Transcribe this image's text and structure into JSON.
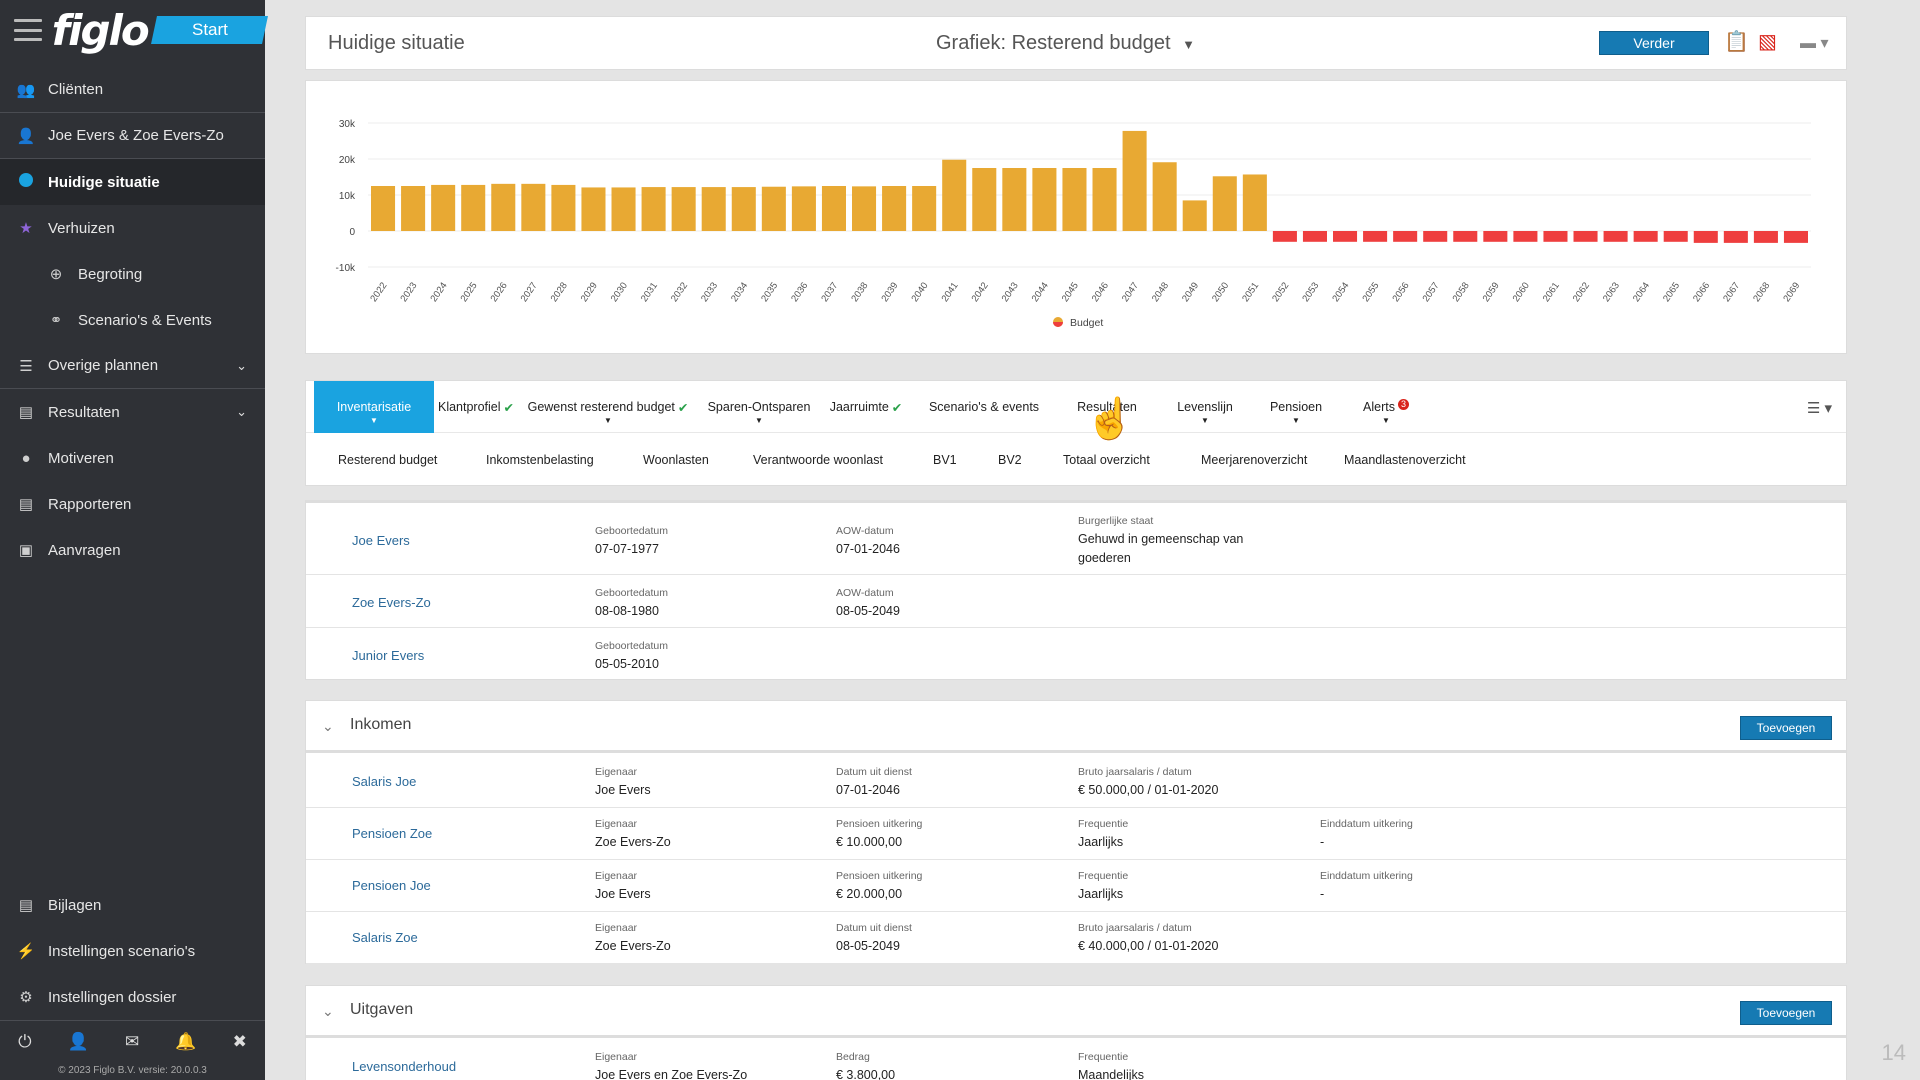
{
  "sidebar": {
    "logo": "figlo",
    "start_label": "Start",
    "items": [
      {
        "label": "Cliënten",
        "icon": "users-icon"
      },
      {
        "label": "Joe Evers & Zoe Evers-Zo",
        "icon": "user-icon"
      },
      {
        "label": "Huidige situatie",
        "icon": "dot-icon"
      },
      {
        "label": "Verhuizen",
        "icon": "star-icon"
      },
      {
        "label": "Begroting",
        "icon": "target-icon"
      },
      {
        "label": "Scenario's & Events",
        "icon": "glasses-icon"
      },
      {
        "label": "Overige plannen",
        "icon": "list-icon"
      },
      {
        "label": "Resultaten",
        "icon": "chart-icon"
      },
      {
        "label": "Motiveren",
        "icon": "chat-icon"
      },
      {
        "label": "Rapporteren",
        "icon": "document-icon"
      },
      {
        "label": "Aanvragen",
        "icon": "safe-icon"
      }
    ],
    "bottom_items": [
      {
        "label": "Bijlagen",
        "icon": "attachment-icon"
      },
      {
        "label": "Instellingen scenario's",
        "icon": "bolt-icon"
      },
      {
        "label": "Instellingen dossier",
        "icon": "gear-icon"
      }
    ],
    "copyright": "© 2023 Figlo B.V. versie: 20.0.0.3"
  },
  "topbar": {
    "title": "Huidige situatie",
    "graph_prefix": "Grafiek:",
    "graph_name": "Resterend budget",
    "verder": "Verder"
  },
  "chart_data": {
    "type": "bar",
    "title": "",
    "ylabel": "",
    "xlabel": "",
    "ylim": [
      -10000,
      30000
    ],
    "yticks": [
      "30k",
      "20k",
      "10k",
      "0",
      "-10k"
    ],
    "categories": [
      "2022",
      "2023",
      "2024",
      "2025",
      "2026",
      "2027",
      "2028",
      "2029",
      "2030",
      "2031",
      "2032",
      "2033",
      "2034",
      "2035",
      "2036",
      "2037",
      "2038",
      "2039",
      "2040",
      "2041",
      "2042",
      "2043",
      "2044",
      "2045",
      "2046",
      "2047",
      "2048",
      "2049",
      "2050",
      "2051",
      "2052",
      "2053",
      "2054",
      "2055",
      "2056",
      "2057",
      "2058",
      "2059",
      "2060",
      "2061",
      "2062",
      "2063",
      "2064",
      "2065",
      "2066",
      "2067",
      "2068",
      "2069"
    ],
    "series": [
      {
        "name": "Budget",
        "values": [
          12500,
          12500,
          12800,
          12800,
          13100,
          13100,
          12800,
          12100,
          12100,
          12200,
          12200,
          12200,
          12200,
          12300,
          12400,
          12500,
          12400,
          12500,
          12500,
          19800,
          17500,
          17500,
          17500,
          17500,
          17500,
          27800,
          19100,
          8500,
          15200,
          15700,
          -3000,
          -3000,
          -3000,
          -3000,
          -3000,
          -3000,
          -3000,
          -3000,
          -3000,
          -3000,
          -3000,
          -3000,
          -3000,
          -3000,
          -3300,
          -3300,
          -3300,
          -3300
        ]
      }
    ],
    "colors": {
      "positive": "#e8a933",
      "negative": "#ee3e3e"
    },
    "legend": "bottom-center",
    "grid": true
  },
  "tabs": [
    {
      "label": "Inventarisatie",
      "active": true,
      "check": false,
      "caret": true
    },
    {
      "label": "Klantprofiel",
      "check": true
    },
    {
      "label": "Gewenst resterend budget",
      "check": true,
      "caret": true
    },
    {
      "label": "Sparen-Ontsparen",
      "caret": true
    },
    {
      "label": "Jaarruimte",
      "check": true
    },
    {
      "label": "Scenario's & events"
    },
    {
      "label": "Resultaten"
    },
    {
      "label": "Levenslijn",
      "caret": true
    },
    {
      "label": "Pensioen",
      "caret": true
    },
    {
      "label": "Alerts",
      "badge": "3",
      "caret": true
    }
  ],
  "subtabs": [
    "Resterend budget",
    "Inkomstenbelasting",
    "Woonlasten",
    "Verantwoorde woonlast",
    "BV1",
    "BV2",
    "Totaal overzicht",
    "Meerjarenoverzicht",
    "Maandlastenoverzicht"
  ],
  "persons": [
    {
      "name": "Joe Evers",
      "geb_label": "Geboortedatum",
      "geb": "07-07-1977",
      "aow_label": "AOW-datum",
      "aow": "07-01-2046",
      "bs_label": "Burgerlijke staat",
      "bs": "Gehuwd in gemeenschap van goederen"
    },
    {
      "name": "Zoe Evers-Zo",
      "geb_label": "Geboortedatum",
      "geb": "08-08-1980",
      "aow_label": "AOW-datum",
      "aow": "08-05-2049"
    },
    {
      "name": "Junior Evers",
      "geb_label": "Geboortedatum",
      "geb": "05-05-2010"
    }
  ],
  "inkomen": {
    "title": "Inkomen",
    "add": "Toevoegen",
    "rows": [
      {
        "name": "Salaris Joe",
        "f1l": "Eigenaar",
        "f1": "Joe Evers",
        "f2l": "Datum uit dienst",
        "f2": "07-01-2046",
        "f3l": "Bruto jaarsalaris / datum",
        "f3": "€ 50.000,00 / 01-01-2020"
      },
      {
        "name": "Pensioen Zoe",
        "f1l": "Eigenaar",
        "f1": "Zoe Evers-Zo",
        "f2l": "Pensioen uitkering",
        "f2": "€ 10.000,00",
        "f3l": "Frequentie",
        "f3": "Jaarlijks",
        "f4l": "Einddatum uitkering",
        "f4": "-"
      },
      {
        "name": "Pensioen Joe",
        "f1l": "Eigenaar",
        "f1": "Joe Evers",
        "f2l": "Pensioen uitkering",
        "f2": "€ 20.000,00",
        "f3l": "Frequentie",
        "f3": "Jaarlijks",
        "f4l": "Einddatum uitkering",
        "f4": "-"
      },
      {
        "name": "Salaris Zoe",
        "f1l": "Eigenaar",
        "f1": "Zoe Evers-Zo",
        "f2l": "Datum uit dienst",
        "f2": "08-05-2049",
        "f3l": "Bruto jaarsalaris / datum",
        "f3": "€ 40.000,00 / 01-01-2020"
      }
    ]
  },
  "uitgaven": {
    "title": "Uitgaven",
    "add": "Toevoegen",
    "rows": [
      {
        "name": "Levensonderhoud",
        "f1l": "Eigenaar",
        "f1": "Joe Evers en Zoe Evers-Zo",
        "f2l": "Bedrag",
        "f2": "€ 3.800,00",
        "f3l": "Frequentie",
        "f3": "Maandelijks"
      }
    ]
  },
  "page_number": "14"
}
